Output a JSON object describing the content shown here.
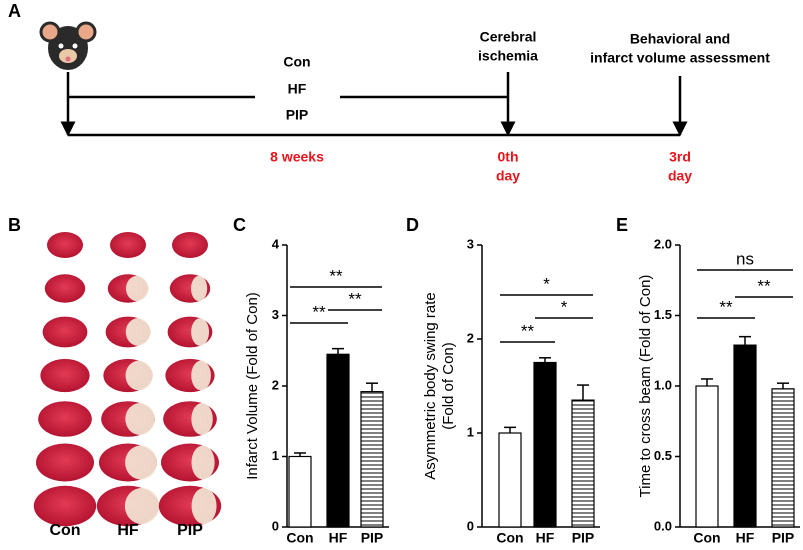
{
  "panel_a": {
    "letter": "A",
    "groups": [
      "Con",
      "HF",
      "PIP"
    ],
    "ischemia": [
      "Cerebral",
      "ischemia"
    ],
    "assessment": [
      "Behavioral and",
      "infarct volume assessment"
    ],
    "duration": "8 weeks",
    "day0": [
      "0th",
      "day"
    ],
    "day3": [
      "3rd",
      "day"
    ]
  },
  "panel_b": {
    "letter": "B",
    "groups": [
      "Con",
      "HF",
      "PIP"
    ]
  },
  "chart_data": [
    {
      "type": "bar",
      "letter": "C",
      "y_label": "Infarct Volume  (Fold of Con)",
      "categories": [
        "Con",
        "HF",
        "PIP"
      ],
      "values": [
        1.0,
        2.45,
        1.92
      ],
      "errors": [
        0.05,
        0.08,
        0.12
      ],
      "bar_styles": [
        "white",
        "black",
        "striped"
      ],
      "ylim": [
        0,
        4
      ],
      "yticks": [
        0,
        1,
        2,
        3,
        4
      ],
      "annotations": [
        {
          "label": "**",
          "between": [
            "Con",
            "HF"
          ]
        },
        {
          "label": "**",
          "between": [
            "HF",
            "PIP"
          ]
        },
        {
          "label": "**",
          "between": [
            "Con",
            "PIP"
          ]
        }
      ]
    },
    {
      "type": "bar",
      "letter": "D",
      "y_label": [
        "Asymmetric body swing rate",
        "(Fold of Con)"
      ],
      "categories": [
        "Con",
        "HF",
        "PIP"
      ],
      "values": [
        1.0,
        1.75,
        1.35
      ],
      "errors": [
        0.06,
        0.05,
        0.16
      ],
      "bar_styles": [
        "white",
        "black",
        "striped"
      ],
      "ylim": [
        0,
        3
      ],
      "yticks": [
        0,
        1,
        2,
        3
      ],
      "annotations": [
        {
          "label": "**",
          "between": [
            "Con",
            "HF"
          ]
        },
        {
          "label": "*",
          "between": [
            "HF",
            "PIP"
          ]
        },
        {
          "label": "*",
          "between": [
            "Con",
            "PIP"
          ]
        }
      ]
    },
    {
      "type": "bar",
      "letter": "E",
      "y_label": "Time to cross beam  (Fold of Con)",
      "categories": [
        "Con",
        "HF",
        "PIP"
      ],
      "values": [
        1.0,
        1.29,
        0.98
      ],
      "errors": [
        0.05,
        0.06,
        0.04
      ],
      "bar_styles": [
        "white",
        "black",
        "striped"
      ],
      "ylim": [
        0,
        2
      ],
      "yticks": [
        {
          "value": 0,
          "label": "0.0"
        },
        0.5,
        {
          "value": 1,
          "label": "1.0"
        },
        1.5,
        {
          "value": 2,
          "label": "2.0"
        }
      ],
      "annotations": [
        {
          "label": "**",
          "between": [
            "Con",
            "HF"
          ]
        },
        {
          "label": "**",
          "between": [
            "HF",
            "PIP"
          ]
        },
        {
          "label": "ns",
          "between": [
            "Con",
            "PIP"
          ]
        }
      ]
    }
  ]
}
